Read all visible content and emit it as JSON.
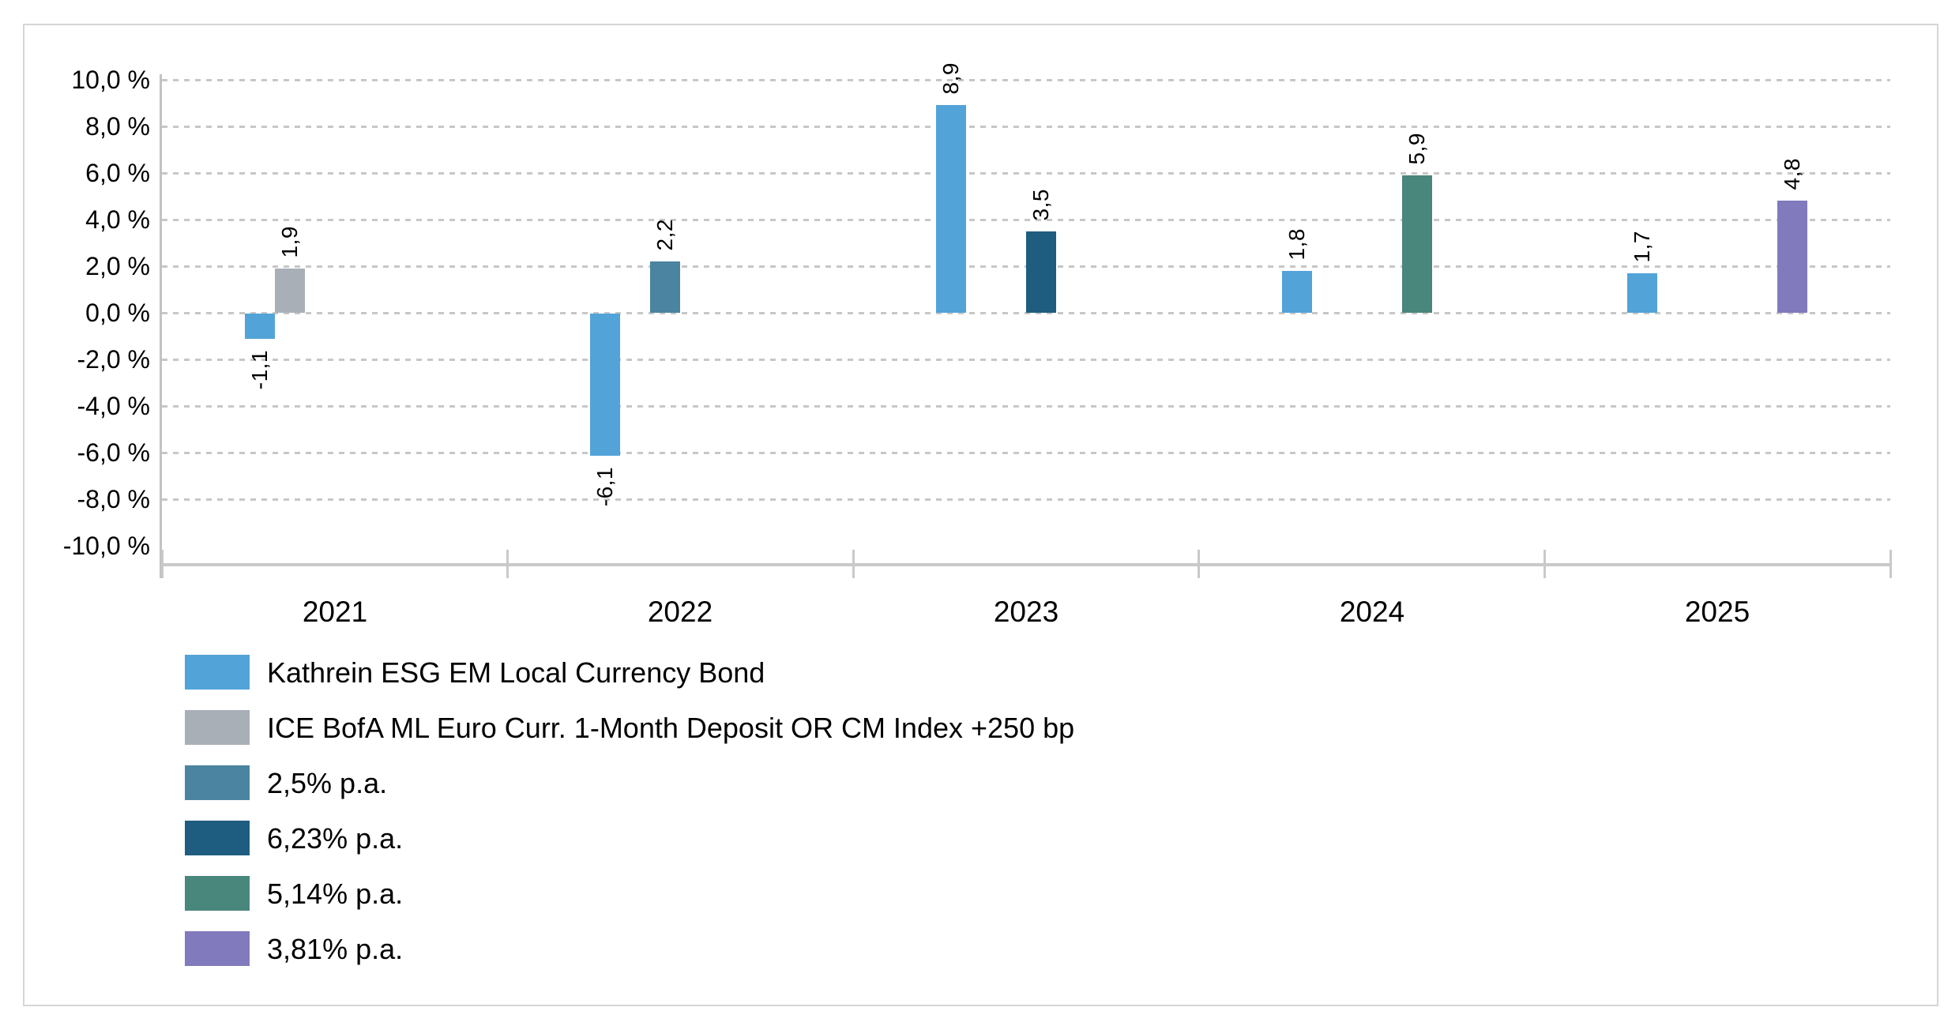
{
  "chart_data": {
    "type": "bar",
    "title": "",
    "categories": [
      "2021",
      "2022",
      "2023",
      "2024",
      "2025"
    ],
    "series": [
      {
        "name": "Kathrein ESG EM Local Currency Bond",
        "color": "#52a3d8",
        "values": [
          -1.1,
          -6.1,
          8.9,
          1.8,
          1.7
        ],
        "labels": [
          "-1,1",
          "-6,1",
          "8,9",
          "1,8",
          "1,7"
        ]
      },
      {
        "name": "ICE BofA ML Euro Curr. 1-Month Deposit OR CM Index +250 bp",
        "color": "#a8afb7",
        "values": [
          1.9,
          null,
          null,
          null,
          null
        ],
        "labels": [
          "1,9",
          "",
          "",
          "",
          ""
        ]
      },
      {
        "name": "2,5% p.a.",
        "color": "#4a84a0",
        "values": [
          null,
          2.2,
          null,
          null,
          null
        ],
        "labels": [
          "",
          "2,2",
          "",
          "",
          ""
        ]
      },
      {
        "name": "6,23% p.a.",
        "color": "#1e5d80",
        "values": [
          null,
          null,
          3.5,
          null,
          null
        ],
        "labels": [
          "",
          "",
          "3,5",
          "",
          ""
        ]
      },
      {
        "name": "5,14% p.a.",
        "color": "#49867b",
        "values": [
          null,
          null,
          null,
          5.9,
          null
        ],
        "labels": [
          "",
          "",
          "",
          "5,9",
          ""
        ]
      },
      {
        "name": "3,81% p.a.",
        "color": "#817abc",
        "values": [
          null,
          null,
          null,
          null,
          4.8
        ],
        "labels": [
          "",
          "",
          "",
          "",
          "4,8"
        ]
      }
    ],
    "y_axis": {
      "min": -10,
      "max": 10,
      "step": 2,
      "unit": "%",
      "tick_labels": [
        "10,0 %",
        "8,0 %",
        "6,0 %",
        "4,0 %",
        "2,0 %",
        "0,0 %",
        "-2,0 %",
        "-4,0 %",
        "-6,0 %",
        "-8,0 %",
        "-10,0 %"
      ]
    },
    "grid": "dashed-horizontal",
    "legend_position": "bottom-left"
  }
}
